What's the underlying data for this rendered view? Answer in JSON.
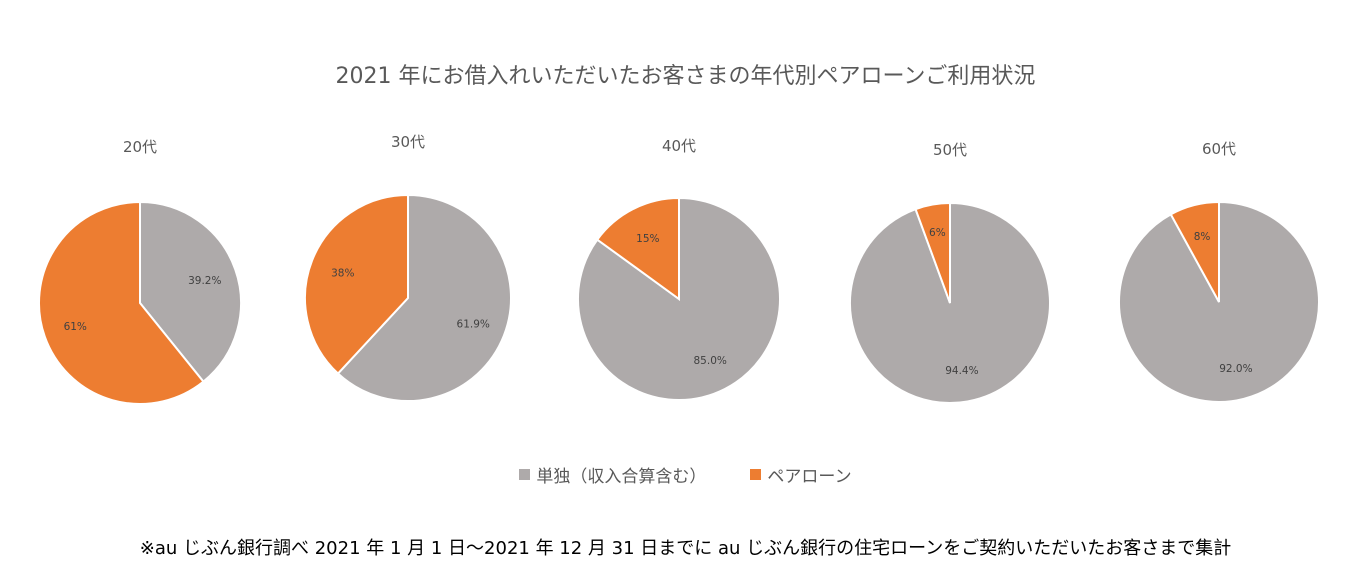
{
  "title": "2021 年にお借入れいただいたお客さまの年代別ペアローンご利用状況",
  "colors": {
    "single": "#AEAAAA",
    "pair": "#ED7D31"
  },
  "legend": {
    "single": "単独（収入合算含む）",
    "pair": "ペアローン"
  },
  "footnote": "※au じぶん銀行調べ  2021 年 1 月 1 日～2021 年 12 月 31 日までに au じぶん銀行の住宅ローンをご契約いただいたお客さまで集計",
  "chart_data": [
    {
      "type": "pie",
      "title": "20代",
      "slices": [
        {
          "name": "単独（収入合算含む）",
          "value": 39.2,
          "label": "39.2%"
        },
        {
          "name": "ペアローン",
          "value": 60.8,
          "label": "61%"
        }
      ]
    },
    {
      "type": "pie",
      "title": "30代",
      "slices": [
        {
          "name": "単独（収入合算含む）",
          "value": 61.9,
          "label": "61.9%"
        },
        {
          "name": "ペアローン",
          "value": 38.1,
          "label": "38%"
        }
      ]
    },
    {
      "type": "pie",
      "title": "40代",
      "slices": [
        {
          "name": "単独（収入合算含む）",
          "value": 85.0,
          "label": "85.0%"
        },
        {
          "name": "ペアローン",
          "value": 15.0,
          "label": "15%"
        }
      ]
    },
    {
      "type": "pie",
      "title": "50代",
      "slices": [
        {
          "name": "単独（収入合算含む）",
          "value": 94.4,
          "label": "94.4%"
        },
        {
          "name": "ペアローン",
          "value": 5.6,
          "label": "6%"
        }
      ]
    },
    {
      "type": "pie",
      "title": "60代",
      "slices": [
        {
          "name": "単独（収入合算含む）",
          "value": 92.0,
          "label": "92.0%"
        },
        {
          "name": "ペアローン",
          "value": 8.0,
          "label": "8%"
        }
      ]
    }
  ]
}
